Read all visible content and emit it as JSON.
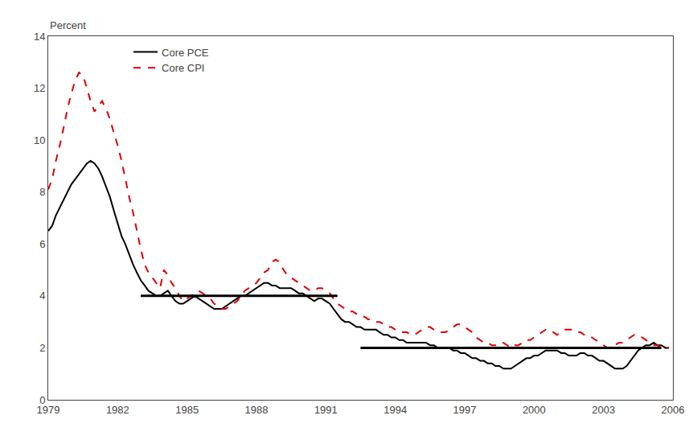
{
  "chart_data": {
    "type": "line",
    "ylabel": "Percent",
    "xlim": [
      1979,
      2006
    ],
    "ylim": [
      0,
      14
    ],
    "xticks": [
      1979,
      1982,
      1985,
      1988,
      1991,
      1994,
      1997,
      2000,
      2003,
      2006
    ],
    "yticks": [
      0,
      2,
      4,
      6,
      8,
      10,
      12,
      14
    ],
    "grid": false,
    "legend": "upper left",
    "x": [
      1979.0,
      1979.17,
      1979.33,
      1979.5,
      1979.67,
      1979.83,
      1980.0,
      1980.17,
      1980.33,
      1980.5,
      1980.67,
      1980.83,
      1981.0,
      1981.17,
      1981.33,
      1981.5,
      1981.67,
      1981.83,
      1982.0,
      1982.17,
      1982.33,
      1982.5,
      1982.67,
      1982.83,
      1983.0,
      1983.17,
      1983.33,
      1983.5,
      1983.67,
      1983.83,
      1984.0,
      1984.17,
      1984.33,
      1984.5,
      1984.67,
      1984.83,
      1985.0,
      1985.17,
      1985.33,
      1985.5,
      1985.67,
      1985.83,
      1986.0,
      1986.17,
      1986.33,
      1986.5,
      1986.67,
      1986.83,
      1987.0,
      1987.17,
      1987.33,
      1987.5,
      1987.67,
      1987.83,
      1988.0,
      1988.17,
      1988.33,
      1988.5,
      1988.67,
      1988.83,
      1989.0,
      1989.17,
      1989.33,
      1989.5,
      1989.67,
      1989.83,
      1990.0,
      1990.17,
      1990.33,
      1990.5,
      1990.67,
      1990.83,
      1991.0,
      1991.17,
      1991.33,
      1991.5,
      1991.67,
      1991.83,
      1992.0,
      1992.17,
      1992.33,
      1992.5,
      1992.67,
      1992.83,
      1993.0,
      1993.17,
      1993.33,
      1993.5,
      1993.67,
      1993.83,
      1994.0,
      1994.17,
      1994.33,
      1994.5,
      1994.67,
      1994.83,
      1995.0,
      1995.17,
      1995.33,
      1995.5,
      1995.67,
      1995.83,
      1996.0,
      1996.17,
      1996.33,
      1996.5,
      1996.67,
      1996.83,
      1997.0,
      1997.17,
      1997.33,
      1997.5,
      1997.67,
      1997.83,
      1998.0,
      1998.17,
      1998.33,
      1998.5,
      1998.67,
      1998.83,
      1999.0,
      1999.17,
      1999.33,
      1999.5,
      1999.67,
      1999.83,
      2000.0,
      2000.17,
      2000.33,
      2000.5,
      2000.67,
      2000.83,
      2001.0,
      2001.17,
      2001.33,
      2001.5,
      2001.67,
      2001.83,
      2002.0,
      2002.17,
      2002.33,
      2002.5,
      2002.67,
      2002.83,
      2003.0,
      2003.17,
      2003.33,
      2003.5,
      2003.67,
      2003.83,
      2004.0,
      2004.17,
      2004.33,
      2004.5,
      2004.67,
      2004.83,
      2005.0,
      2005.17,
      2005.33,
      2005.5,
      2005.67,
      2005.83
    ],
    "series": [
      {
        "name": "Core PCE",
        "color": "#000000",
        "line_style": "solid",
        "values": [
          6.5,
          6.7,
          7.1,
          7.4,
          7.7,
          8.0,
          8.3,
          8.5,
          8.7,
          8.9,
          9.1,
          9.2,
          9.1,
          8.9,
          8.6,
          8.2,
          7.8,
          7.3,
          6.8,
          6.3,
          6.0,
          5.6,
          5.2,
          4.9,
          4.6,
          4.4,
          4.2,
          4.1,
          4.0,
          4.0,
          4.1,
          4.2,
          4.0,
          3.8,
          3.7,
          3.7,
          3.8,
          3.9,
          4.0,
          3.9,
          3.8,
          3.7,
          3.6,
          3.5,
          3.5,
          3.5,
          3.6,
          3.7,
          3.8,
          3.9,
          4.0,
          4.0,
          4.1,
          4.2,
          4.3,
          4.4,
          4.5,
          4.5,
          4.4,
          4.4,
          4.3,
          4.3,
          4.3,
          4.3,
          4.2,
          4.1,
          4.1,
          4.0,
          3.9,
          3.8,
          3.9,
          3.9,
          3.8,
          3.7,
          3.5,
          3.3,
          3.1,
          3.0,
          3.0,
          2.9,
          2.8,
          2.8,
          2.7,
          2.7,
          2.7,
          2.7,
          2.6,
          2.5,
          2.5,
          2.4,
          2.4,
          2.3,
          2.3,
          2.2,
          2.2,
          2.2,
          2.2,
          2.2,
          2.2,
          2.1,
          2.1,
          2.0,
          2.0,
          2.0,
          2.0,
          1.9,
          1.9,
          1.8,
          1.8,
          1.7,
          1.6,
          1.6,
          1.5,
          1.5,
          1.4,
          1.4,
          1.3,
          1.3,
          1.2,
          1.2,
          1.2,
          1.3,
          1.4,
          1.5,
          1.6,
          1.6,
          1.7,
          1.7,
          1.8,
          1.9,
          1.9,
          1.9,
          1.9,
          1.8,
          1.8,
          1.7,
          1.7,
          1.7,
          1.8,
          1.8,
          1.7,
          1.7,
          1.6,
          1.5,
          1.5,
          1.4,
          1.3,
          1.2,
          1.2,
          1.2,
          1.3,
          1.5,
          1.7,
          1.9,
          2.0,
          2.1,
          2.1,
          2.2,
          2.1,
          2.1,
          2.0,
          2.0
        ]
      },
      {
        "name": "Core CPI",
        "color": "#dd0000",
        "line_style": "dashed",
        "values": [
          8.1,
          8.5,
          9.2,
          9.8,
          10.5,
          11.2,
          11.8,
          12.3,
          12.6,
          12.5,
          12.0,
          11.5,
          11.1,
          11.3,
          11.5,
          11.2,
          10.8,
          10.3,
          9.8,
          9.2,
          8.5,
          7.8,
          7.2,
          6.5,
          5.8,
          5.2,
          4.9,
          4.7,
          4.5,
          4.3,
          5.0,
          4.8,
          4.5,
          4.3,
          4.0,
          3.8,
          3.9,
          4.0,
          4.1,
          4.2,
          4.1,
          4.0,
          3.9,
          3.7,
          3.6,
          3.5,
          3.5,
          3.6,
          3.7,
          3.8,
          4.0,
          4.2,
          4.3,
          4.4,
          4.5,
          4.7,
          4.9,
          5.0,
          5.3,
          5.4,
          5.3,
          5.0,
          4.8,
          4.7,
          4.6,
          4.5,
          4.4,
          4.3,
          4.2,
          4.2,
          4.3,
          4.3,
          4.2,
          4.1,
          3.9,
          3.7,
          3.6,
          3.5,
          3.4,
          3.4,
          3.3,
          3.2,
          3.2,
          3.1,
          3.1,
          3.0,
          3.0,
          2.9,
          2.8,
          2.8,
          2.7,
          2.7,
          2.6,
          2.6,
          2.5,
          2.5,
          2.6,
          2.7,
          2.8,
          2.8,
          2.7,
          2.7,
          2.6,
          2.6,
          2.7,
          2.8,
          2.9,
          2.9,
          2.8,
          2.7,
          2.6,
          2.4,
          2.3,
          2.2,
          2.2,
          2.1,
          2.1,
          2.2,
          2.2,
          2.1,
          2.0,
          2.1,
          2.1,
          2.2,
          2.3,
          2.3,
          2.4,
          2.5,
          2.6,
          2.7,
          2.6,
          2.6,
          2.5,
          2.6,
          2.7,
          2.7,
          2.7,
          2.6,
          2.6,
          2.5,
          2.4,
          2.4,
          2.3,
          2.2,
          2.1,
          2.0,
          2.0,
          2.1,
          2.2,
          2.2,
          2.3,
          2.4,
          2.5,
          2.5,
          2.4,
          2.3,
          2.2,
          2.1,
          2.1,
          2.0,
          2.0,
          2.0
        ]
      }
    ],
    "reference_lines": [
      {
        "y": 4.0,
        "x": [
          1983.0,
          1991.5
        ],
        "color": "#000000"
      },
      {
        "y": 2.0,
        "x": [
          1992.5,
          2005.5
        ],
        "color": "#000000"
      }
    ]
  }
}
